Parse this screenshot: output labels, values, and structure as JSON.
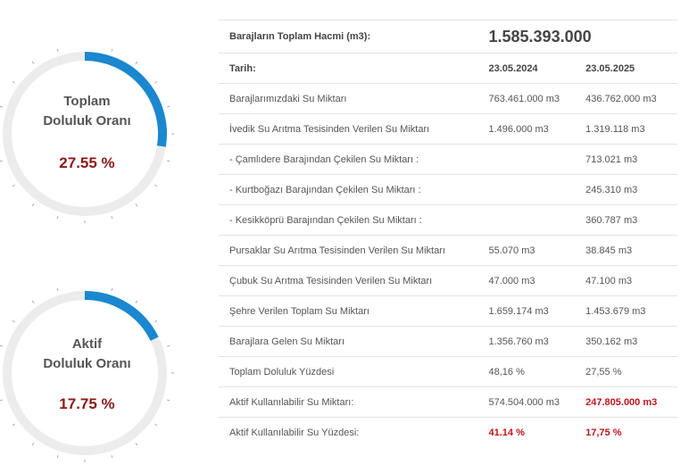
{
  "gauges": [
    {
      "title_line1": "Toplam",
      "title_line2": "Doluluk Oranı",
      "value_text": "27.55 %",
      "percent": 27.55,
      "color": "#1a87cf"
    },
    {
      "title_line1": "Aktif",
      "title_line2": "Doluluk Oranı",
      "value_text": "17.75 %",
      "percent": 17.75,
      "color": "#1a87cf"
    }
  ],
  "table": {
    "total_label": "Barajların Toplam Hacmi (m3):",
    "total_value": "1.585.393.000",
    "date_label": "Tarih:",
    "date1": "23.05.2024",
    "date2": "23.05.2025",
    "rows": [
      {
        "label": "Barajlarımızdaki Su Miktarı",
        "v1": "763.461.000 m3",
        "v2": "436.762.000 m3"
      },
      {
        "label": "İvedik Su Arıtma Tesisinden Verilen Su Miktarı",
        "v1": "1.496.000 m3",
        "v2": "1.319.118 m3"
      },
      {
        "label": "- Çamlıdere Barajından Çekilen Su Miktarı :",
        "v1": "",
        "v2": "713.021 m3"
      },
      {
        "label": "- Kurtboğazı Barajından Çekilen Su Miktarı :",
        "v1": "",
        "v2": "245.310 m3"
      },
      {
        "label": "- Kesikköprü Barajından Çekilen Su Miktarı :",
        "v1": "",
        "v2": "360.787 m3"
      },
      {
        "label": "Pursaklar Su Arıtma Tesisinden Verilen Su Miktarı",
        "v1": "55.070 m3",
        "v2": "38.845 m3"
      },
      {
        "label": "Çubuk Su Arıtma Tesisinden Verilen Su Miktarı",
        "v1": "47.000 m3",
        "v2": "47.100 m3"
      },
      {
        "label": "Şehre Verilen Toplam Su Miktarı",
        "v1": "1.659.174 m3",
        "v2": "1.453.679 m3"
      },
      {
        "label": "Barajlara Gelen Su Miktarı",
        "v1": "1.356.760 m3",
        "v2": "350.162 m3"
      },
      {
        "label": "Toplam Doluluk Yüzdesi",
        "v1": "48,16 %",
        "v2": "27,55 %"
      },
      {
        "label": "Aktif Kullanılabilir Su Miktarı:",
        "v1": "574.504.000 m3",
        "v2": "247.805.000 m3"
      },
      {
        "label": "Aktif Kullanılabilir Su Yüzdesi:",
        "v1": "41.14 %",
        "v2": "17,75 %"
      }
    ]
  }
}
